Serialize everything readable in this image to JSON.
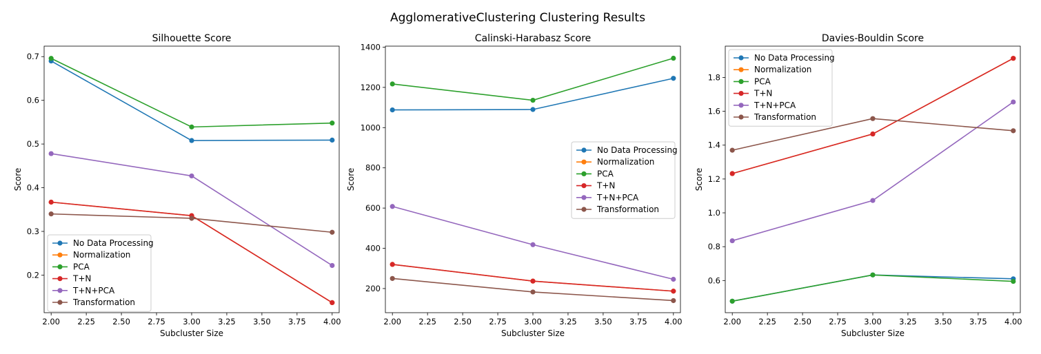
{
  "figure_title": "AgglomerativeClustering Clustering Results",
  "colors": {
    "No Data Processing": "#1f77b4",
    "Normalization": "#ff7f0e",
    "PCA": "#2ca02c",
    "T+N": "#d62728",
    "T+N+PCA": "#9467bd",
    "Transformation": "#8c564b"
  },
  "chart_data": [
    {
      "type": "line",
      "title": "Silhouette Score",
      "xlabel": "Subcluster Size",
      "ylabel": "Score",
      "x": [
        2,
        3,
        4
      ],
      "xlim": [
        1.95,
        4.05
      ],
      "ylim": [
        0.114,
        0.724
      ],
      "xticks": [
        "2.00",
        "2.25",
        "2.50",
        "2.75",
        "3.00",
        "3.25",
        "3.50",
        "3.75",
        "4.00"
      ],
      "yticks": [
        "0.2",
        "0.3",
        "0.4",
        "0.5",
        "0.6",
        "0.7"
      ],
      "legend": "lower-left",
      "grid": false,
      "series": [
        {
          "name": "No Data Processing",
          "values": [
            0.69,
            0.508,
            0.509
          ]
        },
        {
          "name": "Normalization",
          "values": [
            0.367,
            0.336,
            0.137
          ]
        },
        {
          "name": "PCA",
          "values": [
            0.696,
            0.539,
            0.548
          ]
        },
        {
          "name": "T+N",
          "values": [
            0.367,
            0.336,
            0.137
          ]
        },
        {
          "name": "T+N+PCA",
          "values": [
            0.478,
            0.427,
            0.222
          ]
        },
        {
          "name": "Transformation",
          "values": [
            0.34,
            0.33,
            0.298
          ]
        }
      ]
    },
    {
      "type": "line",
      "title": "Calinski-Harabasz Score",
      "xlabel": "Subcluster Size",
      "ylabel": "Score",
      "x": [
        2,
        3,
        4
      ],
      "xlim": [
        1.95,
        4.05
      ],
      "ylim": [
        80,
        1405
      ],
      "xticks": [
        "2.00",
        "2.25",
        "2.50",
        "2.75",
        "3.00",
        "3.25",
        "3.50",
        "3.75",
        "4.00"
      ],
      "yticks": [
        "200",
        "400",
        "600",
        "800",
        "1000",
        "1200",
        "1400"
      ],
      "legend": "center-right",
      "grid": false,
      "series": [
        {
          "name": "No Data Processing",
          "values": [
            1088,
            1090,
            1245
          ]
        },
        {
          "name": "Normalization",
          "values": [
            320,
            237,
            187
          ]
        },
        {
          "name": "PCA",
          "values": [
            1217,
            1136,
            1345
          ]
        },
        {
          "name": "T+N",
          "values": [
            320,
            237,
            187
          ]
        },
        {
          "name": "T+N+PCA",
          "values": [
            608,
            418,
            246
          ]
        },
        {
          "name": "Transformation",
          "values": [
            250,
            183,
            140
          ]
        }
      ]
    },
    {
      "type": "line",
      "title": "Davies-Bouldin Score",
      "xlabel": "Subcluster Size",
      "ylabel": "Score",
      "x": [
        2,
        3,
        4
      ],
      "xlim": [
        1.95,
        4.05
      ],
      "ylim": [
        0.41,
        1.985
      ],
      "xticks": [
        "2.00",
        "2.25",
        "2.50",
        "2.75",
        "3.00",
        "3.25",
        "3.50",
        "3.75",
        "4.00"
      ],
      "yticks": [
        "0.6",
        "0.8",
        "1.0",
        "1.2",
        "1.4",
        "1.6",
        "1.8"
      ],
      "legend": "top-left",
      "grid": false,
      "series": [
        {
          "name": "No Data Processing",
          "values": [
            0.478,
            0.633,
            0.61
          ]
        },
        {
          "name": "Normalization",
          "values": [
            1.232,
            1.466,
            1.913
          ]
        },
        {
          "name": "PCA",
          "values": [
            0.478,
            0.633,
            0.595
          ]
        },
        {
          "name": "T+N",
          "values": [
            1.232,
            1.466,
            1.913
          ]
        },
        {
          "name": "T+N+PCA",
          "values": [
            0.835,
            1.073,
            1.655
          ]
        },
        {
          "name": "Transformation",
          "values": [
            1.37,
            1.557,
            1.485
          ]
        }
      ]
    }
  ]
}
